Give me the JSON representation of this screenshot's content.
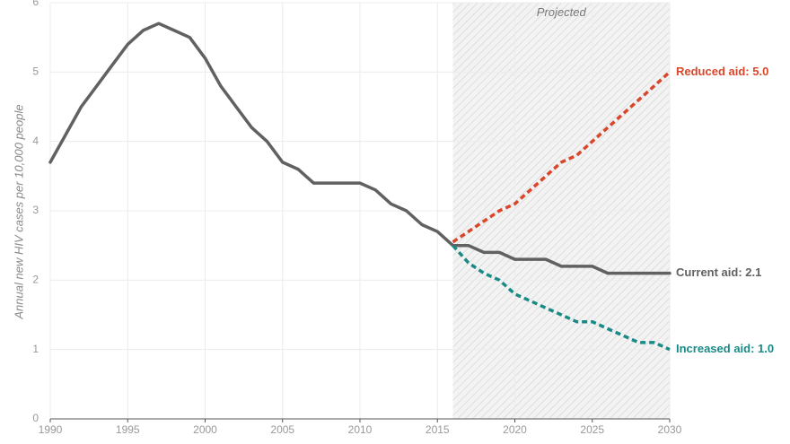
{
  "chart_data": {
    "type": "line",
    "title": "",
    "xlabel": "",
    "ylabel": "Annual new HIV cases per 10,000 people",
    "xlim": [
      1990,
      2030
    ],
    "ylim": [
      0,
      6
    ],
    "x_ticks": [
      "1990",
      "1995",
      "2000",
      "2005",
      "2010",
      "2015",
      "2020",
      "2025",
      "2030"
    ],
    "y_ticks": [
      "0",
      "1",
      "2",
      "3",
      "4",
      "5",
      "6"
    ],
    "grid": true,
    "shaded_region": {
      "label": "Projected",
      "x_start": 2016,
      "x_end": 2030
    },
    "series": [
      {
        "name": "Current aid",
        "color": "#616161",
        "dashed": false,
        "end_label": "Current aid: 2.1",
        "x": [
          1990,
          1991,
          1992,
          1993,
          1994,
          1995,
          1996,
          1997,
          1998,
          1999,
          2000,
          2001,
          2002,
          2003,
          2004,
          2005,
          2006,
          2007,
          2008,
          2009,
          2010,
          2011,
          2012,
          2013,
          2014,
          2015,
          2016,
          2017,
          2018,
          2019,
          2020,
          2021,
          2022,
          2023,
          2024,
          2025,
          2026,
          2027,
          2028,
          2029,
          2030
        ],
        "values": [
          3.7,
          4.1,
          4.5,
          4.8,
          5.1,
          5.4,
          5.6,
          5.7,
          5.6,
          5.5,
          5.2,
          4.8,
          4.5,
          4.2,
          4.0,
          3.7,
          3.6,
          3.4,
          3.4,
          3.4,
          3.4,
          3.3,
          3.1,
          3.0,
          2.8,
          2.7,
          2.5,
          2.5,
          2.4,
          2.4,
          2.3,
          2.3,
          2.3,
          2.2,
          2.2,
          2.2,
          2.1,
          2.1,
          2.1,
          2.1,
          2.1
        ]
      },
      {
        "name": "Reduced aid",
        "color": "#d9472b",
        "dashed": true,
        "end_label": "Reduced aid: 5.0",
        "x": [
          2016,
          2017,
          2018,
          2019,
          2020,
          2021,
          2022,
          2023,
          2024,
          2025,
          2026,
          2027,
          2028,
          2029,
          2030
        ],
        "values": [
          2.55,
          2.7,
          2.85,
          3.0,
          3.1,
          3.3,
          3.5,
          3.7,
          3.8,
          4.0,
          4.2,
          4.4,
          4.6,
          4.8,
          5.0
        ]
      },
      {
        "name": "Increased aid",
        "color": "#1a8a86",
        "dashed": true,
        "end_label": "Increased aid: 1.0",
        "x": [
          2016,
          2017,
          2018,
          2019,
          2020,
          2021,
          2022,
          2023,
          2024,
          2025,
          2026,
          2027,
          2028,
          2029,
          2030
        ],
        "values": [
          2.5,
          2.25,
          2.1,
          2.0,
          1.8,
          1.7,
          1.6,
          1.5,
          1.4,
          1.4,
          1.3,
          1.2,
          1.1,
          1.1,
          1.0
        ]
      }
    ]
  }
}
